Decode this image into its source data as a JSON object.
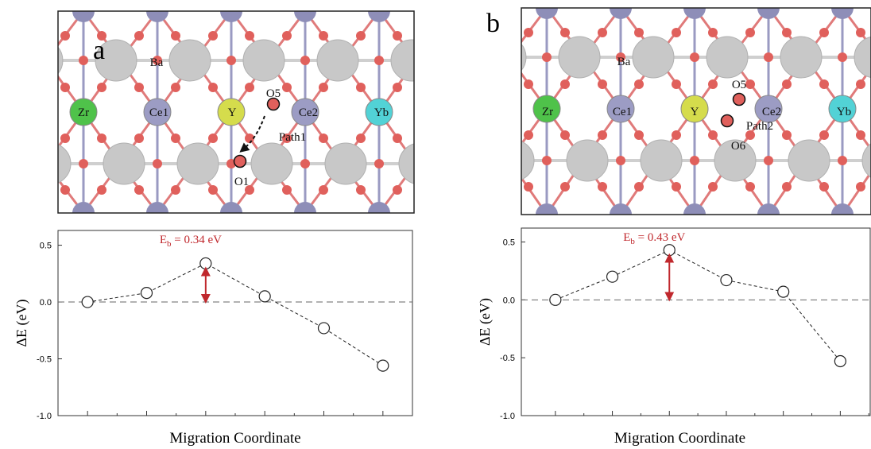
{
  "panels": [
    {
      "label": "a",
      "atoms": [
        "Ba",
        "Zr",
        "Ce1",
        "Y",
        "Ce2",
        "Yb",
        "O5",
        "O1",
        "Path1"
      ]
    },
    {
      "label": "b",
      "atoms": [
        "Ba",
        "Zr",
        "Ce1",
        "Y",
        "Ce2",
        "Yb",
        "O5",
        "O6",
        "Path2"
      ]
    }
  ],
  "chart_data": [
    {
      "type": "line",
      "categories": [
        null,
        null,
        null,
        null,
        null,
        null
      ],
      "values": [
        0,
        0.08,
        0.34,
        0.05,
        -0.23,
        -0.56
      ],
      "ylim": [
        -1.0,
        0.63
      ],
      "yticks": [
        {
          "value": -1.0,
          "label": "-1.0"
        },
        {
          "value": -0.5,
          "label": "-0.5"
        },
        {
          "value": 0.0,
          "label": "0.0"
        },
        {
          "value": 0.5,
          "label": "0.5"
        }
      ],
      "y_label": "ΔE (eV)",
      "x_label": "Migration Coordinate",
      "reference_line": 0,
      "annotation": {
        "symbol": "E",
        "subscript": "b",
        "text": " = 0.34 eV"
      },
      "annotation_color": "#c0282d"
    },
    {
      "type": "line",
      "categories": [
        null,
        null,
        null,
        null,
        null,
        null
      ],
      "values": [
        0,
        0.2,
        0.43,
        0.17,
        0.07,
        -0.53
      ],
      "ylim": [
        -1.0,
        0.62
      ],
      "yticks": [
        {
          "value": -1.0,
          "label": "-1.0"
        },
        {
          "value": -0.5,
          "label": "-0.5"
        },
        {
          "value": 0.0,
          "label": "0.0"
        },
        {
          "value": 0.5,
          "label": "0.5"
        }
      ],
      "y_label": "ΔE (eV)",
      "x_label": "Migration Coordinate",
      "reference_line": 0,
      "annotation": {
        "symbol": "E",
        "subscript": "b",
        "text": " = 0.43 eV"
      },
      "annotation_color": "#c0282d"
    }
  ]
}
